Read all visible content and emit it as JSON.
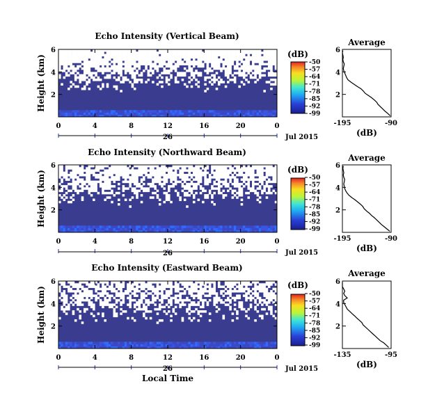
{
  "chart_data": [
    {
      "type": "heatmap",
      "title": "Echo Intensity (Vertical Beam)",
      "ylabel": "Height (km)",
      "x_ticks": [
        "0",
        "4",
        "8",
        "12",
        "16",
        "20",
        "0"
      ],
      "y_ticks": [
        "2",
        "4",
        "6"
      ],
      "date_day": "26",
      "date_label": "Jul 2015",
      "xlim": [
        0,
        24
      ],
      "ylim": [
        0,
        6
      ],
      "colorbar": {
        "label": "(dB)",
        "ticks": [
          "-50",
          "-57",
          "-64",
          "-71",
          "-78",
          "-85",
          "-92",
          "-99"
        ],
        "range": [
          -99,
          -50
        ]
      },
      "average": {
        "title": "Average",
        "xlabel": "(dB)",
        "x_ticks": [
          "-195",
          "-90"
        ],
        "y_ticks": [
          "2",
          "4",
          "6"
        ],
        "profile": [
          [
            -92,
            0.1
          ],
          [
            -97,
            0.3
          ],
          [
            -103,
            0.5
          ],
          [
            -108,
            0.7
          ],
          [
            -113,
            0.9
          ],
          [
            -118,
            1.1
          ],
          [
            -121,
            1.3
          ],
          [
            -126,
            1.5
          ],
          [
            -132,
            1.7
          ],
          [
            -139,
            1.9
          ],
          [
            -146,
            2.1
          ],
          [
            -150,
            2.3
          ],
          [
            -155,
            2.5
          ],
          [
            -163,
            2.7
          ],
          [
            -170,
            2.9
          ],
          [
            -177,
            3.1
          ],
          [
            -183,
            3.3
          ],
          [
            -186,
            3.5
          ],
          [
            -188,
            3.7
          ],
          [
            -190,
            3.9
          ],
          [
            -192,
            4.1
          ],
          [
            -193,
            4.3
          ],
          [
            -192,
            4.5
          ],
          [
            -191,
            4.7
          ],
          [
            -193,
            4.9
          ],
          [
            -194,
            5.1
          ],
          [
            -193,
            5.3
          ],
          [
            -194,
            5.5
          ],
          [
            -195,
            5.7
          ],
          [
            -194,
            5.9
          ]
        ]
      },
      "white_fraction": 0.72
    },
    {
      "type": "heatmap",
      "title": "Echo Intensity (Northward Beam)",
      "ylabel": "Height (km)",
      "x_ticks": [
        "0",
        "4",
        "8",
        "12",
        "16",
        "20",
        "0"
      ],
      "y_ticks": [
        "2",
        "4",
        "6"
      ],
      "date_day": "26",
      "date_label": "Jul 2015",
      "xlim": [
        0,
        24
      ],
      "ylim": [
        0,
        6
      ],
      "colorbar": {
        "label": "(dB)",
        "ticks": [
          "-50",
          "-57",
          "-64",
          "-71",
          "-78",
          "-85",
          "-92",
          "-99"
        ],
        "range": [
          -99,
          -50
        ]
      },
      "average": {
        "title": "Average",
        "xlabel": "(dB)",
        "x_ticks": [
          "-195",
          "-90"
        ],
        "y_ticks": [
          "2",
          "4",
          "6"
        ],
        "profile": [
          [
            -93,
            0.1
          ],
          [
            -99,
            0.3
          ],
          [
            -105,
            0.5
          ],
          [
            -111,
            0.7
          ],
          [
            -116,
            0.9
          ],
          [
            -121,
            1.1
          ],
          [
            -126,
            1.3
          ],
          [
            -132,
            1.5
          ],
          [
            -137,
            1.7
          ],
          [
            -143,
            1.9
          ],
          [
            -148,
            2.1
          ],
          [
            -151,
            2.3
          ],
          [
            -156,
            2.5
          ],
          [
            -162,
            2.7
          ],
          [
            -168,
            2.9
          ],
          [
            -175,
            3.1
          ],
          [
            -181,
            3.3
          ],
          [
            -185,
            3.5
          ],
          [
            -188,
            3.7
          ],
          [
            -190,
            3.9
          ],
          [
            -191,
            4.1
          ],
          [
            -192,
            4.3
          ],
          [
            -191,
            4.5
          ],
          [
            -190,
            4.7
          ],
          [
            -192,
            4.9
          ],
          [
            -193,
            5.1
          ],
          [
            -192,
            5.3
          ],
          [
            -193,
            5.5
          ],
          [
            -194,
            5.7
          ],
          [
            -193,
            5.9
          ]
        ]
      },
      "white_fraction": 0.62
    },
    {
      "type": "heatmap",
      "title": "Echo Intensity (Eastward Beam)",
      "ylabel": "Height (km)",
      "xlabel": "Local Time",
      "x_ticks": [
        "0",
        "4",
        "8",
        "12",
        "16",
        "20",
        "0"
      ],
      "y_ticks": [
        "2",
        "4",
        "6"
      ],
      "date_day": "26",
      "date_label": "Jul 2015",
      "xlim": [
        0,
        24
      ],
      "ylim": [
        0,
        6
      ],
      "colorbar": {
        "label": "(dB)",
        "ticks": [
          "-50",
          "-57",
          "-64",
          "-71",
          "-78",
          "-85",
          "-92",
          "-99"
        ],
        "range": [
          -99,
          -50
        ]
      },
      "average": {
        "title": "Average",
        "xlabel": "(dB)",
        "x_ticks": [
          "-135",
          "-95"
        ],
        "y_ticks": [
          "2",
          "4",
          "6"
        ],
        "profile": [
          [
            -97,
            0.1
          ],
          [
            -99,
            0.3
          ],
          [
            -101,
            0.5
          ],
          [
            -104,
            0.7
          ],
          [
            -106,
            0.9
          ],
          [
            -108,
            1.1
          ],
          [
            -110,
            1.3
          ],
          [
            -112,
            1.5
          ],
          [
            -114,
            1.7
          ],
          [
            -116,
            1.9
          ],
          [
            -118,
            2.1
          ],
          [
            -119,
            2.3
          ],
          [
            -121,
            2.5
          ],
          [
            -123,
            2.7
          ],
          [
            -125,
            2.9
          ],
          [
            -127,
            3.1
          ],
          [
            -129,
            3.3
          ],
          [
            -131,
            3.5
          ],
          [
            -132,
            3.7
          ],
          [
            -133,
            3.9
          ],
          [
            -134,
            4.1
          ],
          [
            -134,
            4.3
          ],
          [
            -131,
            4.5
          ],
          [
            -133,
            4.7
          ],
          [
            -134,
            4.9
          ],
          [
            -133,
            5.1
          ],
          [
            -134,
            5.3
          ],
          [
            -135,
            5.5
          ],
          [
            -135,
            5.7
          ],
          [
            -135,
            5.9
          ]
        ]
      },
      "white_fraction": 0.55
    }
  ]
}
